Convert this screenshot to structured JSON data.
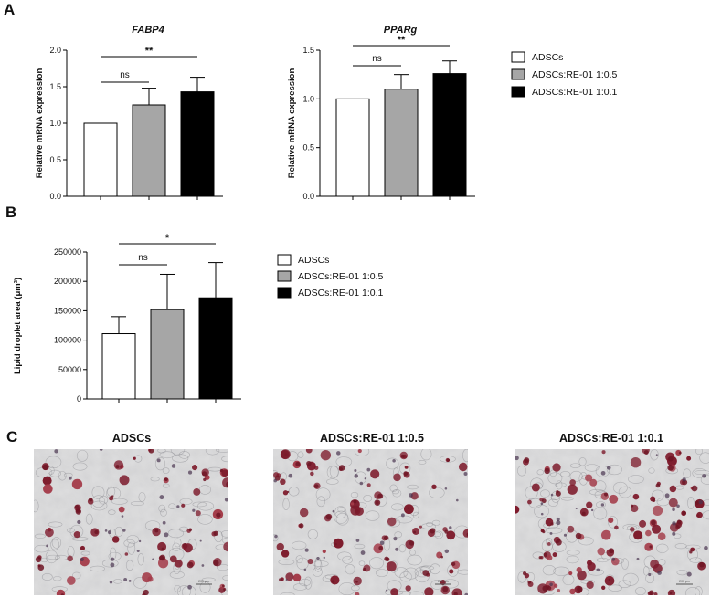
{
  "panels": {
    "A": "A",
    "B": "B",
    "C": "C"
  },
  "colors": {
    "group1": "#ffffff",
    "group2": "#a6a6a6",
    "group3": "#000000",
    "axis": "#000000"
  },
  "legend_entries": [
    "ADSCs",
    "ADSCs:RE-01 1:0.5",
    "ADSCs:RE-01 1:0.1"
  ],
  "chart_data": [
    {
      "type": "bar",
      "id": "fabp4",
      "title": "FABP4",
      "ylabel": "Relative mRNA expression",
      "ylim": [
        0,
        2.0
      ],
      "yticks": [
        "0.0",
        "0.5",
        "1.0",
        "1.5",
        "2.0"
      ],
      "categories": [
        "ADSCs",
        "ADSCs:RE-01 1:0.5",
        "ADSCs:RE-01 1:0.1"
      ],
      "values": [
        1.0,
        1.25,
        1.43
      ],
      "errors": [
        0,
        0.23,
        0.2
      ],
      "significance": [
        {
          "from": 0,
          "to": 1,
          "label": "ns"
        },
        {
          "from": 0,
          "to": 2,
          "label": "**"
        }
      ]
    },
    {
      "type": "bar",
      "id": "pparg",
      "title": "PPARg",
      "ylabel": "Relative mRNA expression",
      "ylim": [
        0,
        1.5
      ],
      "yticks": [
        "0.0",
        "0.5",
        "1.0",
        "1.5"
      ],
      "categories": [
        "ADSCs",
        "ADSCs:RE-01 1:0.5",
        "ADSCs:RE-01 1:0.1"
      ],
      "values": [
        1.0,
        1.1,
        1.26
      ],
      "errors": [
        0,
        0.15,
        0.13
      ],
      "significance": [
        {
          "from": 0,
          "to": 1,
          "label": "ns"
        },
        {
          "from": 0,
          "to": 2,
          "label": "**"
        }
      ]
    },
    {
      "type": "bar",
      "id": "lipid",
      "title": "",
      "ylabel": "Lipid droplet area (μm²)",
      "ylim": [
        0,
        250000
      ],
      "yticks": [
        "0",
        "50000",
        "100000",
        "150000",
        "200000",
        "250000"
      ],
      "categories": [
        "ADSCs",
        "ADSCs:RE-01 1:0.5",
        "ADSCs:RE-01 1:0.1"
      ],
      "values": [
        111000,
        152000,
        172000
      ],
      "errors": [
        29000,
        60000,
        60000
      ],
      "significance": [
        {
          "from": 0,
          "to": 1,
          "label": "ns"
        },
        {
          "from": 0,
          "to": 2,
          "label": "*"
        }
      ]
    }
  ],
  "images": [
    {
      "title": "ADSCs",
      "scale_text": "200 μm"
    },
    {
      "title": "ADSCs:RE-01 1:0.5",
      "scale_text": "200 μm"
    },
    {
      "title": "ADSCs:RE-01 1:0.1",
      "scale_text": "200 μm"
    }
  ]
}
